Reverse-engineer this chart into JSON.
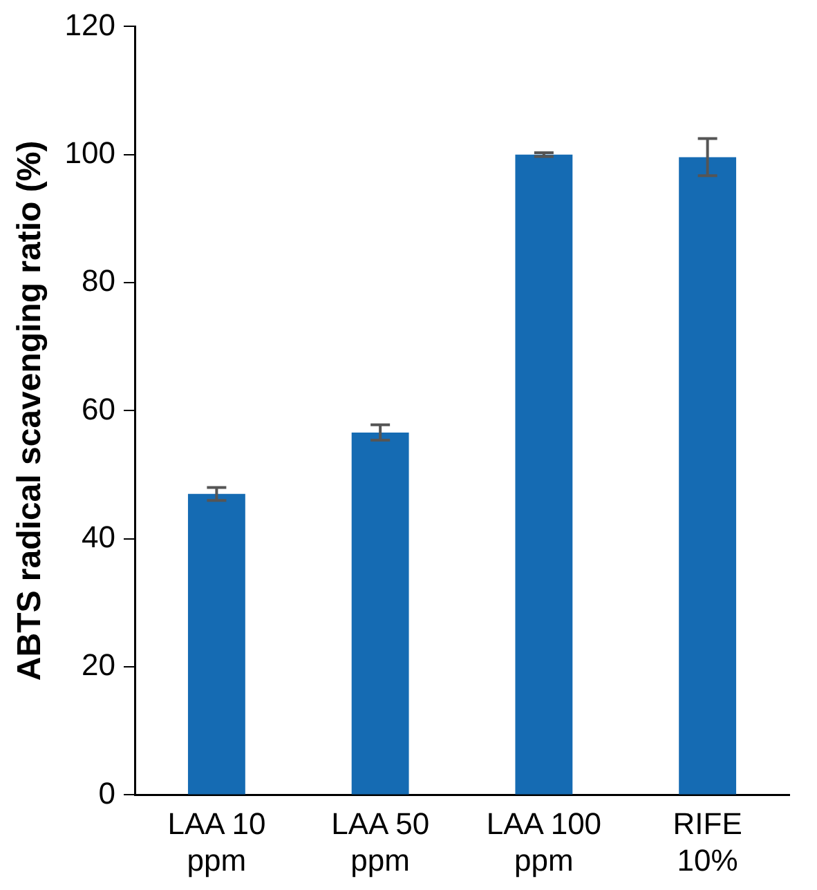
{
  "chart_data": {
    "type": "bar",
    "ylabel": "ABTS radical scavenging ratio (%)",
    "categories": [
      "LAA 10 ppm",
      "LAA 50 ppm",
      "LAA 100 ppm",
      "RIFE 10%"
    ],
    "values": [
      47,
      56.6,
      100,
      99.6
    ],
    "errors": [
      1,
      1.2,
      0.3,
      2.9
    ],
    "color": "#156bb3",
    "ylim": [
      0,
      120
    ],
    "yticks": [
      0,
      20,
      40,
      60,
      80,
      100,
      120
    ],
    "grid": false,
    "legend": false
  }
}
